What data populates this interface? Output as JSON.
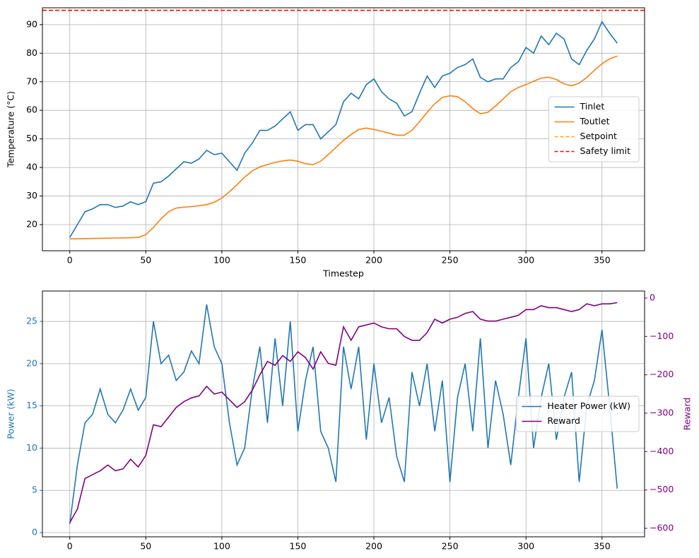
{
  "chart_data": [
    {
      "type": "line",
      "xlabel": "Timestep",
      "ylabel": "Temperature (°C)",
      "xlim": [
        -18,
        378
      ],
      "xticks": [
        0,
        50,
        100,
        150,
        200,
        250,
        300,
        350
      ],
      "ylim": [
        10.85,
        95.9
      ],
      "yticks": [
        20,
        30,
        40,
        50,
        60,
        70,
        80,
        90
      ],
      "grid": true,
      "legend": "center right",
      "x": [
        0,
        5,
        10,
        15,
        20,
        25,
        30,
        35,
        40,
        45,
        50,
        55,
        60,
        65,
        70,
        75,
        80,
        85,
        90,
        95,
        100,
        105,
        110,
        115,
        120,
        125,
        130,
        135,
        140,
        145,
        150,
        155,
        160,
        165,
        170,
        175,
        180,
        185,
        190,
        195,
        200,
        205,
        210,
        215,
        220,
        225,
        230,
        235,
        240,
        245,
        250,
        255,
        260,
        265,
        270,
        275,
        280,
        285,
        290,
        295,
        300,
        305,
        310,
        315,
        320,
        325,
        330,
        335,
        340,
        345,
        350,
        355,
        360
      ],
      "series": [
        {
          "name": "Tinlet",
          "color": "#1f77b4",
          "values": [
            15.5,
            20,
            24.5,
            25.5,
            27,
            27,
            26,
            26.5,
            28,
            27,
            28,
            34.5,
            35,
            37,
            39.5,
            42,
            41.5,
            43,
            46,
            44.5,
            45,
            42,
            39,
            45,
            48.5,
            53,
            53,
            54.5,
            57,
            59.5,
            53,
            55,
            55,
            50,
            52.5,
            55,
            63,
            66,
            64,
            69,
            71,
            66.5,
            64,
            62.5,
            58,
            59.5,
            66,
            72,
            68,
            72,
            73,
            75,
            76,
            78,
            71.5,
            70,
            71,
            71,
            75,
            77,
            82,
            80,
            86,
            83,
            87,
            85,
            78,
            76,
            81,
            85,
            91,
            87,
            83.5
          ]
        },
        {
          "name": "Toutlet",
          "color": "#ff7f0e",
          "values": [
            15,
            15.05,
            15.1,
            15.15,
            15.2,
            15.25,
            15.3,
            15.35,
            15.4,
            15.5,
            16.5,
            19,
            22,
            24.5,
            25.8,
            26.1,
            26.3,
            26.6,
            27,
            27.8,
            29.3,
            31.5,
            34,
            36.6,
            38.8,
            40.2,
            41,
            41.8,
            42.3,
            42.6,
            42.2,
            41.3,
            41,
            42.2,
            44.5,
            47,
            49.5,
            51.5,
            53.3,
            53.8,
            53.3,
            52.7,
            52,
            51.3,
            51.3,
            53,
            56,
            59.3,
            62.3,
            64.5,
            65.1,
            64.8,
            63,
            60.6,
            58.8,
            59.3,
            61.5,
            64,
            66.5,
            68,
            69,
            70.2,
            71.3,
            71.6,
            70.8,
            69.3,
            68.6,
            69.5,
            71.5,
            74,
            76.3,
            78,
            79
          ]
        },
        {
          "name": "Setpoint",
          "color": "#ffa500",
          "dashed": true,
          "value": 95
        },
        {
          "name": "Safety limit",
          "color": "#ff0000",
          "dashed": true,
          "value": 95
        }
      ]
    },
    {
      "type": "line",
      "ylabel": "Power (kW)",
      "ylabel_color": "#1f77b4",
      "y2label": "Reward",
      "y2label_color": "#800080",
      "xlim": [
        -18,
        378
      ],
      "xticks": [
        0,
        50,
        100,
        150,
        200,
        250,
        300,
        350
      ],
      "ylim": [
        -0.5,
        28.6
      ],
      "yticks": [
        0,
        5,
        10,
        15,
        20,
        25
      ],
      "y2lim": [
        -622,
        18.4
      ],
      "y2ticks": [
        {
          "value": -600,
          "label": "−600"
        },
        {
          "value": -500,
          "label": "−500"
        },
        {
          "value": -400,
          "label": "−400"
        },
        {
          "value": -300,
          "label": "−300"
        },
        {
          "value": -200,
          "label": "−200"
        },
        {
          "value": -100,
          "label": "−100"
        },
        0
      ],
      "grid": true,
      "legend": "center right",
      "x": [
        0,
        5,
        10,
        15,
        20,
        25,
        30,
        35,
        40,
        45,
        50,
        55,
        60,
        65,
        70,
        75,
        80,
        85,
        90,
        95,
        100,
        105,
        110,
        115,
        120,
        125,
        130,
        135,
        140,
        145,
        150,
        155,
        160,
        165,
        170,
        175,
        180,
        185,
        190,
        195,
        200,
        205,
        210,
        215,
        220,
        225,
        230,
        235,
        240,
        245,
        250,
        255,
        260,
        265,
        270,
        275,
        280,
        285,
        290,
        295,
        300,
        305,
        310,
        315,
        320,
        325,
        330,
        335,
        340,
        345,
        350,
        355,
        360
      ],
      "series": [
        {
          "name": "Heater Power (kW)",
          "color": "#1f77b4",
          "values": [
            1,
            8,
            13,
            14,
            17,
            14,
            13,
            14.5,
            17,
            14.5,
            16,
            25,
            20,
            21,
            18,
            19,
            21.5,
            20,
            27,
            22,
            20,
            13,
            8,
            10,
            17,
            22,
            13,
            23,
            15,
            25,
            12,
            18,
            22,
            12,
            10,
            6,
            22,
            17,
            22,
            11,
            20,
            13,
            16,
            9,
            6,
            19,
            15,
            20,
            12,
            18,
            6,
            16,
            20,
            12,
            23,
            10,
            18,
            14,
            8,
            16,
            23,
            10,
            16,
            20,
            11,
            16,
            19,
            6,
            15,
            18,
            24,
            15,
            5.2
          ]
        },
        {
          "name": "Reward",
          "color": "#800080",
          "axis": "y2",
          "values": [
            -585,
            -550,
            -470,
            -460,
            -450,
            -435,
            -450,
            -445,
            -420,
            -440,
            -410,
            -330,
            -335,
            -310,
            -285,
            -270,
            -260,
            -255,
            -230,
            -250,
            -245,
            -265,
            -285,
            -270,
            -240,
            -200,
            -165,
            -175,
            -150,
            -165,
            -140,
            -155,
            -185,
            -140,
            -170,
            -175,
            -75,
            -110,
            -75,
            -70,
            -65,
            -75,
            -80,
            -80,
            -100,
            -110,
            -110,
            -90,
            -55,
            -65,
            -55,
            -50,
            -40,
            -35,
            -55,
            -60,
            -60,
            -55,
            -50,
            -45,
            -30,
            -30,
            -20,
            -25,
            -25,
            -30,
            -35,
            -30,
            -15,
            -20,
            -15,
            -15,
            -12
          ]
        }
      ]
    }
  ]
}
